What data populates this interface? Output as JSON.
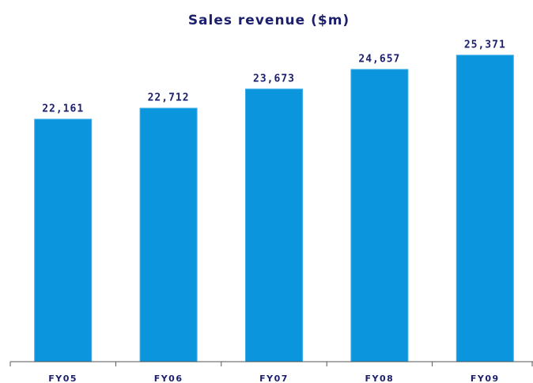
{
  "chart_data": {
    "type": "bar",
    "title": "Sales revenue ($m)",
    "categories": [
      "FY05",
      "FY06",
      "FY07",
      "FY08",
      "FY09"
    ],
    "values": [
      22161,
      22712,
      23673,
      24657,
      25371
    ],
    "value_labels": [
      "22,161",
      "22,712",
      "23,673",
      "24,657",
      "25,371"
    ],
    "color": "#0a95dc",
    "ylim": [
      10000,
      26000
    ]
  }
}
